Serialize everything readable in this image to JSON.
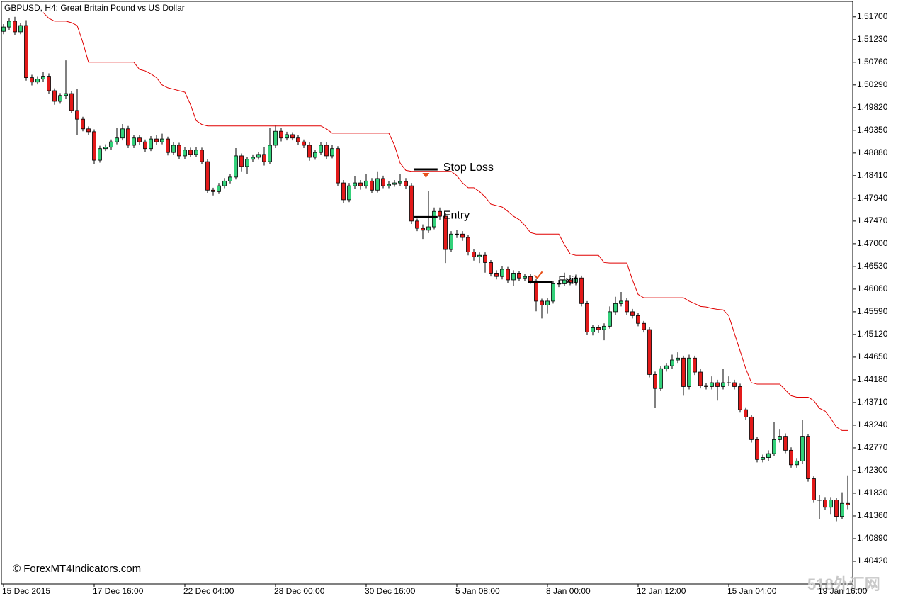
{
  "chart_data": {
    "type": "candlestick",
    "title": "GBPUSD, H4:  Great Britain Pound vs US Dollar",
    "watermark": "© ForexMT4Indicators.com",
    "logo": "518外汇网",
    "up_color": "#33d17a",
    "down_color": "#e31a1a",
    "ylim": [
      1.3995,
      1.5202
    ],
    "xlim": [
      -0.375,
      149.875
    ],
    "yticks": [
      {
        "value": 1.517,
        "label": "1.51700"
      },
      {
        "value": 1.5123,
        "label": "1.51230"
      },
      {
        "value": 1.5076,
        "label": "1.50760"
      },
      {
        "value": 1.5029,
        "label": "1.50290"
      },
      {
        "value": 1.4982,
        "label": "1.49820"
      },
      {
        "value": 1.4935,
        "label": "1.49350"
      },
      {
        "value": 1.4888,
        "label": "1.48880"
      },
      {
        "value": 1.4841,
        "label": "1.48410"
      },
      {
        "value": 1.4794,
        "label": "1.47940"
      },
      {
        "value": 1.4747,
        "label": "1.47470"
      },
      {
        "value": 1.47,
        "label": "1.47000"
      },
      {
        "value": 1.4653,
        "label": "1.46530"
      },
      {
        "value": 1.4606,
        "label": "1.46060"
      },
      {
        "value": 1.4559,
        "label": "1.45590"
      },
      {
        "value": 1.4512,
        "label": "1.45120"
      },
      {
        "value": 1.4465,
        "label": "1.44650"
      },
      {
        "value": 1.4418,
        "label": "1.44180"
      },
      {
        "value": 1.4371,
        "label": "1.43710"
      },
      {
        "value": 1.4324,
        "label": "1.43240"
      },
      {
        "value": 1.4277,
        "label": "1.42770"
      },
      {
        "value": 1.423,
        "label": "1.42300"
      },
      {
        "value": 1.4183,
        "label": "1.41830"
      },
      {
        "value": 1.4136,
        "label": "1.41360"
      },
      {
        "value": 1.4089,
        "label": "1.40890"
      },
      {
        "value": 1.4042,
        "label": "1.40420"
      }
    ],
    "xticks": [
      {
        "value": 0,
        "label": "15 Dec 2015"
      },
      {
        "value": 16,
        "label": "17 Dec 16:00"
      },
      {
        "value": 32,
        "label": "22 Dec 04:00"
      },
      {
        "value": 48,
        "label": "28 Dec 00:00"
      },
      {
        "value": 64,
        "label": "30 Dec 16:00"
      },
      {
        "value": 80,
        "label": "5 Jan 08:00"
      },
      {
        "value": 96,
        "label": "8 Jan 00:00"
      },
      {
        "value": 112,
        "label": "12 Jan 12:00"
      },
      {
        "value": 128,
        "label": "15 Jan 04:00"
      },
      {
        "value": 144,
        "label": "19 Jan 16:00"
      }
    ],
    "open": [
      1.514,
      1.5149,
      1.5161,
      1.5139,
      1.5152,
      1.5044,
      1.5035,
      1.5041,
      1.5047,
      1.5017,
      1.4995,
      1.5007,
      1.5011,
      1.4976,
      1.4958,
      1.4938,
      1.4932,
      1.4873,
      1.4897,
      1.49,
      1.4911,
      1.4919,
      1.4938,
      1.4904,
      1.4919,
      1.4911,
      1.4897,
      1.4917,
      1.4911,
      1.4917,
      1.4889,
      1.4904,
      1.4882,
      1.4894,
      1.4885,
      1.4894,
      1.487,
      1.4811,
      1.4808,
      1.482,
      1.483,
      1.4838,
      1.4882,
      1.486,
      1.4875,
      1.4879,
      1.4885,
      1.487,
      1.4904,
      1.4933,
      1.4919,
      1.4926,
      1.4919,
      1.4911,
      1.4904,
      1.4879,
      1.4889,
      1.4904,
      1.4882,
      1.4897,
      1.4826,
      1.4791,
      1.482,
      1.4826,
      1.482,
      1.483,
      1.4811,
      1.4835,
      1.482,
      1.4823,
      1.4826,
      1.4829,
      1.482,
      1.4747,
      1.4732,
      1.4728,
      1.4735,
      1.4767,
      1.4757,
      1.4688,
      1.472,
      1.472,
      1.4713,
      1.4683,
      1.4673,
      1.4676,
      1.4661,
      1.4639,
      1.4632,
      1.4647,
      1.4625,
      1.4639,
      1.4629,
      1.4632,
      1.4623,
      1.4581,
      1.4573,
      1.4581,
      1.4617,
      1.4617,
      1.4625,
      1.462,
      1.4629,
      1.4576,
      1.4517,
      1.4526,
      1.4522,
      1.4529,
      1.4559,
      1.4576,
      1.4581,
      1.4559,
      1.4551,
      1.4535,
      1.4522,
      1.4429,
      1.44,
      1.4441,
      1.4447,
      1.4459,
      1.4463,
      1.4404,
      1.4463,
      1.4434,
      1.4406,
      1.4404,
      1.4412,
      1.4404,
      1.4412,
      1.4412,
      1.4404,
      1.4356,
      1.4341,
      1.4294,
      1.4253,
      1.4257,
      1.4265,
      1.4294,
      1.4301,
      1.4272,
      1.4242,
      1.425,
      1.4301,
      1.4213,
      1.4169,
      1.4169,
      1.4154,
      1.4169,
      1.4135,
      1.4162
    ],
    "high": [
      1.5155,
      1.5168,
      1.517,
      1.5158,
      1.5163,
      1.505,
      1.5047,
      1.5056,
      1.5053,
      1.5022,
      1.5012,
      1.508,
      1.5016,
      1.502,
      1.4963,
      1.4943,
      1.4937,
      1.4903,
      1.4906,
      1.4916,
      1.494,
      1.4948,
      1.4944,
      1.4925,
      1.4926,
      1.4916,
      1.4923,
      1.4925,
      1.4928,
      1.4922,
      1.491,
      1.4909,
      1.49,
      1.4899,
      1.49,
      1.4899,
      1.4875,
      1.4816,
      1.4826,
      1.4836,
      1.4844,
      1.4898,
      1.4887,
      1.488,
      1.4885,
      1.489,
      1.49,
      1.494,
      1.4945,
      1.494,
      1.4932,
      1.4931,
      1.4925,
      1.4916,
      1.491,
      1.4895,
      1.491,
      1.491,
      1.4904,
      1.4902,
      1.4832,
      1.4826,
      1.484,
      1.4832,
      1.4845,
      1.4836,
      1.485,
      1.4841,
      1.483,
      1.4832,
      1.4845,
      1.4836,
      1.4826,
      1.4752,
      1.474,
      1.481,
      1.4775,
      1.4775,
      1.4763,
      1.4726,
      1.4728,
      1.4726,
      1.4718,
      1.4688,
      1.4682,
      1.4682,
      1.4666,
      1.4645,
      1.4653,
      1.4652,
      1.4645,
      1.4644,
      1.4638,
      1.4638,
      1.4628,
      1.4586,
      1.4587,
      1.4623,
      1.4625,
      1.464,
      1.4635,
      1.4636,
      1.4634,
      1.4581,
      1.4532,
      1.4532,
      1.4535,
      1.457,
      1.459,
      1.46,
      1.4587,
      1.4565,
      1.4556,
      1.454,
      1.4527,
      1.4435,
      1.4447,
      1.4453,
      1.447,
      1.4475,
      1.4468,
      1.447,
      1.4468,
      1.444,
      1.4412,
      1.4425,
      1.4418,
      1.444,
      1.4425,
      1.4418,
      1.441,
      1.4361,
      1.4346,
      1.4299,
      1.4263,
      1.4272,
      1.433,
      1.4315,
      1.4307,
      1.4278,
      1.4256,
      1.4335,
      1.4306,
      1.4218,
      1.418,
      1.4175,
      1.4175,
      1.4174,
      1.4185,
      1.422
    ],
    "low": [
      1.5134,
      1.5143,
      1.5132,
      1.5134,
      1.5038,
      1.5028,
      1.503,
      1.5036,
      1.501,
      1.4988,
      1.499,
      1.5,
      1.497,
      1.4926,
      1.4933,
      1.4926,
      1.4865,
      1.4868,
      1.4892,
      1.4895,
      1.4906,
      1.4914,
      1.4898,
      1.4898,
      1.4905,
      1.489,
      1.4892,
      1.4905,
      1.4906,
      1.4883,
      1.4884,
      1.4876,
      1.4876,
      1.488,
      1.488,
      1.4865,
      1.4805,
      1.48,
      1.4803,
      1.4815,
      1.4825,
      1.4833,
      1.485,
      1.4845,
      1.487,
      1.4874,
      1.4862,
      1.4865,
      1.4898,
      1.4912,
      1.4914,
      1.4914,
      1.4905,
      1.4898,
      1.4872,
      1.4874,
      1.4884,
      1.4876,
      1.4877,
      1.482,
      1.4785,
      1.4786,
      1.4814,
      1.4812,
      1.4815,
      1.4805,
      1.4806,
      1.4815,
      1.4815,
      1.4818,
      1.482,
      1.4814,
      1.4741,
      1.4726,
      1.471,
      1.4722,
      1.473,
      1.475,
      1.466,
      1.4683,
      1.4712,
      1.4706,
      1.4676,
      1.4665,
      1.466,
      1.464,
      1.4632,
      1.4626,
      1.4626,
      1.4618,
      1.4612,
      1.4623,
      1.4623,
      1.4617,
      1.456,
      1.4545,
      1.4555,
      1.4576,
      1.461,
      1.4612,
      1.4614,
      1.4614,
      1.457,
      1.4511,
      1.451,
      1.4515,
      1.45,
      1.4524,
      1.4553,
      1.457,
      1.4553,
      1.4545,
      1.4529,
      1.4516,
      1.4423,
      1.436,
      1.4395,
      1.4435,
      1.4441,
      1.4453,
      1.4385,
      1.4398,
      1.4428,
      1.44,
      1.4398,
      1.4398,
      1.4375,
      1.4398,
      1.4405,
      1.4398,
      1.435,
      1.4335,
      1.4288,
      1.4247,
      1.4247,
      1.425,
      1.426,
      1.4288,
      1.4266,
      1.4236,
      1.4236,
      1.4244,
      1.4207,
      1.4163,
      1.413,
      1.4148,
      1.414,
      1.4125,
      1.413,
      1.415
    ],
    "close": [
      1.5149,
      1.5161,
      1.5139,
      1.5152,
      1.5044,
      1.5035,
      1.5041,
      1.5047,
      1.5017,
      1.4995,
      1.5007,
      1.5011,
      1.4976,
      1.4958,
      1.4938,
      1.4932,
      1.4873,
      1.4897,
      1.49,
      1.4911,
      1.4919,
      1.4938,
      1.4904,
      1.4919,
      1.4911,
      1.4897,
      1.4917,
      1.4911,
      1.4917,
      1.4889,
      1.4904,
      1.4882,
      1.4894,
      1.4885,
      1.4894,
      1.487,
      1.4811,
      1.4808,
      1.482,
      1.483,
      1.4838,
      1.4882,
      1.486,
      1.4875,
      1.4879,
      1.4885,
      1.487,
      1.4904,
      1.4933,
      1.4919,
      1.4926,
      1.4919,
      1.4911,
      1.4904,
      1.4879,
      1.4889,
      1.4904,
      1.4882,
      1.4897,
      1.4826,
      1.4791,
      1.482,
      1.4826,
      1.482,
      1.483,
      1.4811,
      1.4835,
      1.482,
      1.4823,
      1.4826,
      1.4829,
      1.482,
      1.4747,
      1.4732,
      1.4728,
      1.4735,
      1.4767,
      1.4757,
      1.4688,
      1.472,
      1.472,
      1.4713,
      1.4683,
      1.4673,
      1.4676,
      1.4661,
      1.4639,
      1.4632,
      1.4647,
      1.4625,
      1.4639,
      1.4629,
      1.4632,
      1.4623,
      1.4581,
      1.4573,
      1.4581,
      1.4617,
      1.4617,
      1.4625,
      1.462,
      1.4629,
      1.4576,
      1.4517,
      1.4526,
      1.4522,
      1.4529,
      1.4559,
      1.4576,
      1.4581,
      1.4559,
      1.4551,
      1.4535,
      1.4522,
      1.4429,
      1.44,
      1.4441,
      1.4447,
      1.4459,
      1.4463,
      1.4404,
      1.4463,
      1.4434,
      1.4406,
      1.4404,
      1.4412,
      1.4404,
      1.4412,
      1.4412,
      1.4404,
      1.4356,
      1.4341,
      1.4294,
      1.4253,
      1.4257,
      1.4265,
      1.4294,
      1.4301,
      1.4272,
      1.4242,
      1.425,
      1.4301,
      1.4213,
      1.4169,
      1.4169,
      1.4154,
      1.4169,
      1.4135,
      1.4162,
      1.4159
    ],
    "line": {
      "color": "#e00000",
      "values": [
        null,
        null,
        null,
        null,
        null,
        null,
        null,
        1.5179,
        1.5167,
        1.5161,
        1.5161,
        1.5161,
        1.5158,
        1.5152,
        1.5117,
        1.5076,
        1.5076,
        1.5076,
        1.5076,
        1.5076,
        1.5076,
        1.5076,
        1.5076,
        1.5076,
        1.5061,
        1.5058,
        1.5052,
        1.5044,
        1.5029,
        1.5023,
        1.502,
        1.5017,
        1.5014,
        1.4988,
        1.4955,
        1.4947,
        1.4944,
        1.4944,
        1.4944,
        1.4944,
        1.4944,
        1.4944,
        1.4944,
        1.4944,
        1.4944,
        1.4944,
        1.4944,
        1.4944,
        1.4944,
        1.4944,
        1.4944,
        1.4944,
        1.4944,
        1.4944,
        1.4944,
        1.4944,
        1.4944,
        1.4938,
        1.4929,
        1.4929,
        1.4929,
        1.4929,
        1.4929,
        1.4929,
        1.4929,
        1.4929,
        1.4929,
        1.4929,
        1.4929,
        1.4904,
        1.4867,
        1.4852,
        1.485,
        1.485,
        1.485,
        1.485,
        1.485,
        1.485,
        1.485,
        1.485,
        1.4841,
        1.4826,
        1.4816,
        1.4816,
        1.4808,
        1.4797,
        1.4782,
        1.4779,
        1.4776,
        1.4767,
        1.4757,
        1.475,
        1.4738,
        1.4723,
        1.472,
        1.472,
        1.472,
        1.472,
        1.472,
        1.4698,
        1.4679,
        1.4676,
        1.4676,
        1.4676,
        1.4676,
        1.4676,
        1.4661,
        1.466,
        1.466,
        1.466,
        1.466,
        1.4625,
        1.4595,
        1.4588,
        1.4588,
        1.4588,
        1.4588,
        1.4588,
        1.4588,
        1.4588,
        1.4588,
        1.4581,
        1.4576,
        1.457,
        1.4569,
        1.4566,
        1.4564,
        1.4563,
        1.4551,
        1.4514,
        1.4478,
        1.4441,
        1.4412,
        1.4409,
        1.4409,
        1.4409,
        1.4409,
        1.4409,
        1.4397,
        1.4385,
        1.4382,
        1.4382,
        1.4382,
        1.4375,
        1.4359,
        1.4353,
        1.4338,
        1.432,
        1.4313,
        1.4313
      ]
    },
    "annotations": [
      {
        "label": "Stop Loss",
        "value": 1.4854,
        "x": [
          72.5,
          76.6
        ]
      },
      {
        "label": "Entry",
        "value": 1.4755,
        "x": [
          72.5,
          76.6
        ]
      },
      {
        "label": "Exit",
        "value": 1.462,
        "x": [
          92.5,
          96.9
        ]
      }
    ]
  }
}
